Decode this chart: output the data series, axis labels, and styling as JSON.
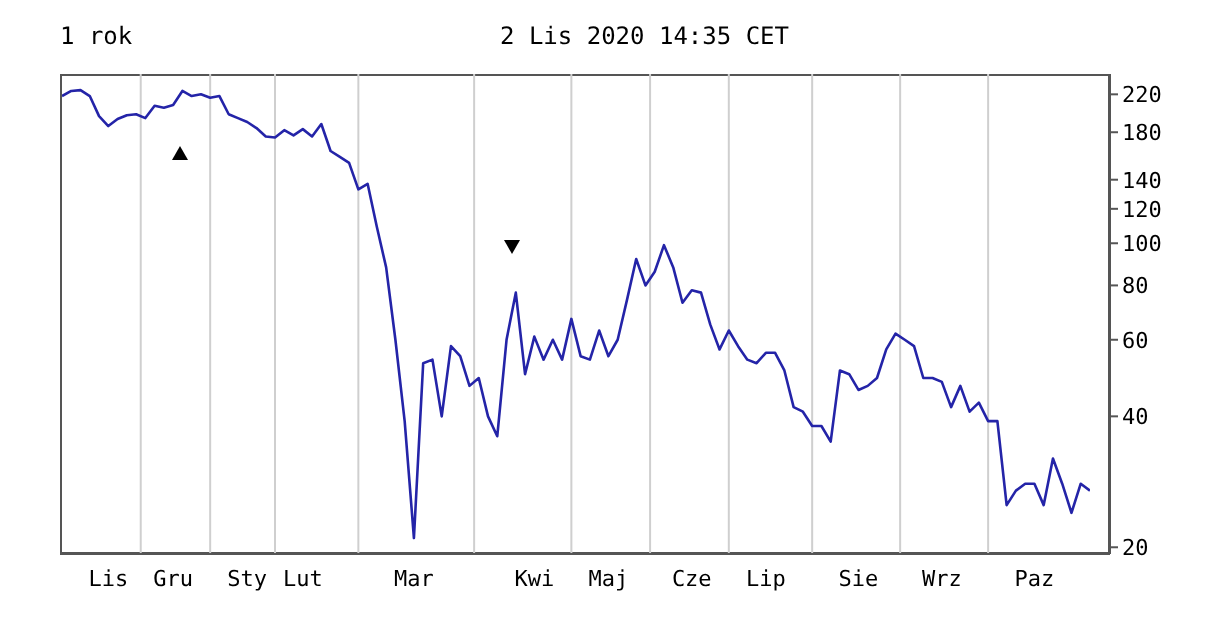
{
  "chart_data": {
    "type": "line",
    "title": "1 rok",
    "subtitle": "2 Lis 2020 14:35 CET",
    "categories": [
      null,
      null,
      null,
      null,
      null,
      "Lis",
      null,
      null,
      null,
      null,
      null,
      null,
      "Gru",
      null,
      null,
      null,
      null,
      null,
      null,
      null,
      "Sty",
      null,
      null,
      null,
      null,
      null,
      "Lut",
      null,
      null,
      null,
      null,
      null,
      null,
      null,
      null,
      null,
      null,
      null,
      "Mar",
      null,
      null,
      null,
      null,
      null,
      null,
      null,
      null,
      null,
      null,
      null,
      null,
      "Kwi",
      null,
      null,
      null,
      null,
      null,
      null,
      null,
      "Maj",
      null,
      null,
      null,
      null,
      null,
      null,
      null,
      null,
      "Cze",
      null,
      null,
      null,
      null,
      null,
      null,
      null,
      "Lip",
      null,
      null,
      null,
      null,
      null,
      null,
      null,
      null,
      null,
      "Sie",
      null,
      null,
      null,
      null,
      null,
      null,
      null,
      null,
      "Wrz",
      null,
      null,
      null,
      null,
      null,
      null,
      null,
      null,
      null,
      "Paz",
      null,
      null,
      null,
      null,
      null,
      null
    ],
    "series": [
      {
        "color": "#2424a8",
        "values": [
          218,
          224,
          225,
          218,
          196,
          186,
          193,
          197,
          198,
          194,
          207,
          205,
          208,
          224,
          218,
          220,
          216,
          218,
          198,
          194,
          190,
          184,
          176,
          175,
          182,
          177,
          183,
          176,
          188,
          163,
          158,
          153,
          133,
          137,
          109,
          88,
          60,
          39,
          21,
          53,
          54,
          40,
          58,
          55,
          47,
          49,
          40,
          36,
          60,
          77,
          50,
          61,
          54,
          60,
          54,
          67,
          55,
          54,
          63,
          55,
          60,
          74,
          92,
          80,
          86,
          99,
          88,
          73,
          78,
          77,
          65,
          57,
          63,
          58,
          54,
          53,
          56,
          56,
          51,
          42,
          41,
          38,
          38,
          35,
          51,
          50,
          46,
          47,
          49,
          57,
          62,
          60,
          58,
          49,
          49,
          48,
          42,
          47,
          41,
          43,
          39,
          39,
          25,
          27,
          28,
          28,
          25,
          32,
          28,
          24,
          28,
          27
        ]
      }
    ],
    "ylim": [
      19.3,
      245
    ],
    "log": "y",
    "yticks": [
      20,
      40,
      60,
      80,
      100,
      120,
      140,
      180,
      220
    ],
    "grid": true,
    "marker": "none",
    "line_style": "solid"
  }
}
